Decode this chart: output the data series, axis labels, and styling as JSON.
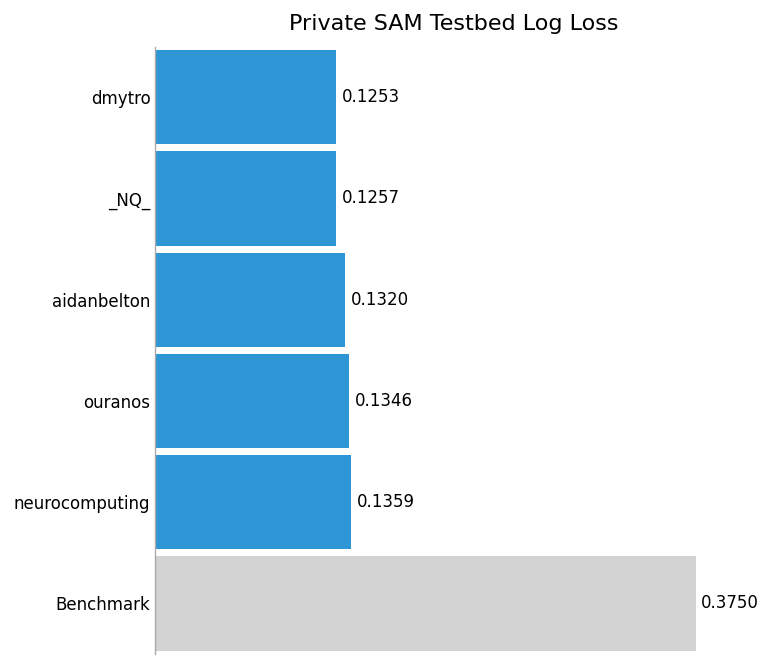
{
  "categories": [
    "dmytro",
    "_NQ_",
    "aidanbelton",
    "ouranos",
    "neurocomputing",
    "Benchmark"
  ],
  "values": [
    0.1253,
    0.1257,
    0.132,
    0.1346,
    0.1359,
    0.375
  ],
  "bar_colors": [
    "#2E96D4",
    "#2E96D4",
    "#2E96D4",
    "#2E96D4",
    "#2E96D4",
    "#D3D3D3"
  ],
  "labels": [
    "0.1253",
    "0.1257",
    "0.1320",
    "0.1346",
    "0.1359",
    "0.3750"
  ],
  "title": "Private SAM Testbed Log Loss",
  "title_fontsize": 16,
  "xlim": [
    0,
    0.415
  ],
  "background_color": "#ffffff",
  "label_fontsize": 12,
  "ytick_fontsize": 12
}
